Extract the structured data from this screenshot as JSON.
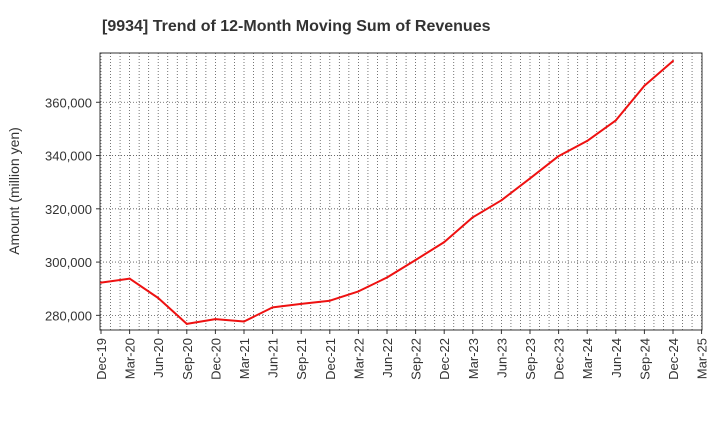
{
  "chart_data": {
    "type": "line",
    "title": "[9934]  Trend of 12-Month Moving Sum of Revenues",
    "xlabel": "",
    "ylabel": "Amount (million yen)",
    "x_ticks": [
      "Dec-19",
      "Mar-20",
      "Jun-20",
      "Sep-20",
      "Dec-20",
      "Mar-21",
      "Jun-21",
      "Sep-21",
      "Dec-21",
      "Mar-22",
      "Jun-22",
      "Sep-22",
      "Dec-22",
      "Mar-23",
      "Jun-23",
      "Sep-23",
      "Dec-23",
      "Mar-24",
      "Jun-24",
      "Sep-24",
      "Dec-24",
      "Mar-25"
    ],
    "y_ticks": [
      "280,000",
      "300,000",
      "320,000",
      "340,000",
      "360,000"
    ],
    "y_tick_values": [
      280000,
      300000,
      320000,
      340000,
      360000
    ],
    "ylim": [
      274500,
      378500
    ],
    "grid": true,
    "line_color": "#ee1111",
    "series": [
      {
        "x": [
          "Dec-19",
          "Mar-20",
          "Jun-20",
          "Sep-20",
          "Dec-20",
          "Mar-21",
          "Jun-21",
          "Sep-21",
          "Dec-21",
          "Mar-22",
          "Jun-22",
          "Sep-22",
          "Dec-22",
          "Mar-23",
          "Jun-23",
          "Sep-23",
          "Dec-23",
          "Mar-24",
          "Jun-24",
          "Sep-24",
          "Dec-24"
        ],
        "values": [
          292300,
          293800,
          286500,
          276800,
          278600,
          277700,
          283000,
          284300,
          285500,
          289000,
          294200,
          300800,
          307500,
          316800,
          323200,
          331400,
          339800,
          345500,
          353200,
          366200,
          375500
        ]
      }
    ]
  }
}
